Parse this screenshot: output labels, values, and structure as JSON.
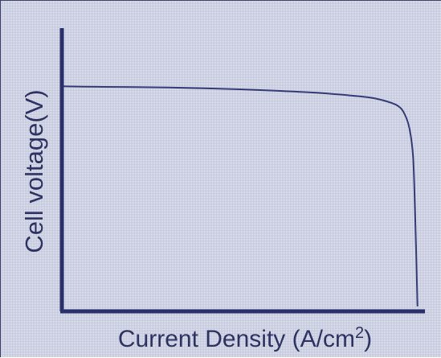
{
  "chart_data": {
    "type": "line",
    "title": "",
    "xlabel": "Current Density (A/cm²)",
    "ylabel": "Cell voltage(V)",
    "xlim": [
      0,
      1
    ],
    "ylim": [
      0,
      1
    ],
    "grid": false,
    "legend": "none",
    "series": [
      {
        "x": [
          0.0,
          0.1,
          0.2,
          0.3,
          0.4,
          0.5,
          0.6,
          0.7,
          0.8,
          0.86,
          0.9,
          0.94,
          0.96,
          0.975,
          0.985,
          0.99,
          0.995,
          0.997
        ],
        "y": [
          0.92,
          0.918,
          0.917,
          0.915,
          0.912,
          0.908,
          0.902,
          0.895,
          0.884,
          0.875,
          0.863,
          0.842,
          0.81,
          0.745,
          0.63,
          0.42,
          0.15,
          0.02
        ],
        "color": "#343a78"
      }
    ],
    "axis_color": "#2a2f6e"
  }
}
